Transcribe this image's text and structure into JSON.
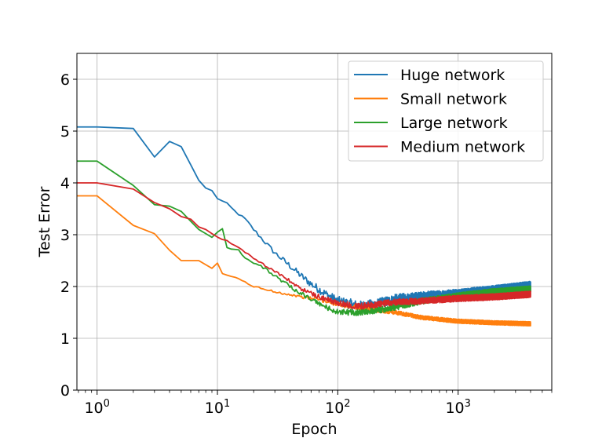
{
  "chart_data": {
    "type": "line",
    "xlabel": "Epoch",
    "ylabel": "Test Error",
    "xscale": "log",
    "xlim": [
      0.68,
      6000
    ],
    "ylim": [
      0,
      6.5
    ],
    "xticks": [
      {
        "value": 1,
        "base": "10",
        "exp": "0"
      },
      {
        "value": 10,
        "base": "10",
        "exp": "1"
      },
      {
        "value": 100,
        "base": "10",
        "exp": "2"
      },
      {
        "value": 1000,
        "base": "10",
        "exp": "3"
      }
    ],
    "yticks": [
      0,
      1,
      2,
      3,
      4,
      5,
      6
    ],
    "grid": true,
    "legend_position": "top-right",
    "series": [
      {
        "name": "Huge network",
        "color": "#1f77b4",
        "noise": 0.1,
        "points": [
          [
            0.68,
            5.08
          ],
          [
            1,
            5.08
          ],
          [
            2,
            5.05
          ],
          [
            3,
            4.5
          ],
          [
            4,
            4.8
          ],
          [
            5,
            4.7
          ],
          [
            6,
            4.35
          ],
          [
            7,
            4.05
          ],
          [
            8,
            3.9
          ],
          [
            9,
            3.85
          ],
          [
            10,
            3.7
          ],
          [
            12,
            3.6
          ],
          [
            14,
            3.45
          ],
          [
            17,
            3.3
          ],
          [
            20,
            3.1
          ],
          [
            25,
            2.85
          ],
          [
            30,
            2.65
          ],
          [
            40,
            2.4
          ],
          [
            50,
            2.2
          ],
          [
            60,
            2.05
          ],
          [
            80,
            1.85
          ],
          [
            100,
            1.72
          ],
          [
            150,
            1.62
          ],
          [
            200,
            1.65
          ],
          [
            300,
            1.75
          ],
          [
            500,
            1.8
          ],
          [
            1000,
            1.85
          ],
          [
            2000,
            1.92
          ],
          [
            4000,
            2.0
          ]
        ]
      },
      {
        "name": "Small network",
        "color": "#ff7f0e",
        "noise": 0.04,
        "points": [
          [
            0.68,
            3.75
          ],
          [
            1,
            3.75
          ],
          [
            2,
            3.18
          ],
          [
            3,
            3.02
          ],
          [
            4,
            2.7
          ],
          [
            5,
            2.5
          ],
          [
            7,
            2.5
          ],
          [
            9,
            2.35
          ],
          [
            10,
            2.45
          ],
          [
            11,
            2.25
          ],
          [
            15,
            2.15
          ],
          [
            20,
            2.0
          ],
          [
            30,
            1.9
          ],
          [
            50,
            1.8
          ],
          [
            70,
            1.75
          ],
          [
            100,
            1.65
          ],
          [
            200,
            1.55
          ],
          [
            300,
            1.5
          ],
          [
            500,
            1.4
          ],
          [
            1000,
            1.33
          ],
          [
            2000,
            1.3
          ],
          [
            4000,
            1.28
          ]
        ]
      },
      {
        "name": "Large network",
        "color": "#2ca02c",
        "noise": 0.06,
        "points": [
          [
            0.68,
            4.42
          ],
          [
            1,
            4.42
          ],
          [
            2,
            3.95
          ],
          [
            3,
            3.58
          ],
          [
            4,
            3.55
          ],
          [
            5,
            3.45
          ],
          [
            7,
            3.1
          ],
          [
            9,
            2.95
          ],
          [
            10,
            3.05
          ],
          [
            11,
            3.12
          ],
          [
            12,
            2.75
          ],
          [
            15,
            2.7
          ],
          [
            17,
            2.55
          ],
          [
            20,
            2.45
          ],
          [
            25,
            2.35
          ],
          [
            30,
            2.2
          ],
          [
            40,
            2.0
          ],
          [
            60,
            1.75
          ],
          [
            80,
            1.6
          ],
          [
            100,
            1.5
          ],
          [
            150,
            1.5
          ],
          [
            200,
            1.53
          ],
          [
            300,
            1.6
          ],
          [
            500,
            1.72
          ],
          [
            1000,
            1.82
          ],
          [
            2000,
            1.9
          ],
          [
            4000,
            1.95
          ]
        ]
      },
      {
        "name": "Medium network",
        "color": "#d62728",
        "noise": 0.06,
        "points": [
          [
            0.68,
            4.0
          ],
          [
            1,
            4.0
          ],
          [
            2,
            3.88
          ],
          [
            3,
            3.62
          ],
          [
            4,
            3.5
          ],
          [
            5,
            3.35
          ],
          [
            6,
            3.3
          ],
          [
            7,
            3.15
          ],
          [
            8,
            3.1
          ],
          [
            10,
            2.95
          ],
          [
            12,
            2.88
          ],
          [
            15,
            2.75
          ],
          [
            20,
            2.55
          ],
          [
            25,
            2.4
          ],
          [
            30,
            2.3
          ],
          [
            40,
            2.1
          ],
          [
            50,
            1.95
          ],
          [
            70,
            1.8
          ],
          [
            100,
            1.68
          ],
          [
            150,
            1.62
          ],
          [
            200,
            1.65
          ],
          [
            300,
            1.7
          ],
          [
            500,
            1.72
          ],
          [
            1000,
            1.77
          ],
          [
            2000,
            1.8
          ],
          [
            4000,
            1.85
          ]
        ]
      }
    ]
  }
}
